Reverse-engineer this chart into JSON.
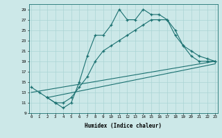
{
  "xlabel": "Humidex (Indice chaleur)",
  "xlim": [
    0,
    23
  ],
  "ylim": [
    9,
    30
  ],
  "yticks": [
    9,
    11,
    13,
    15,
    17,
    19,
    21,
    23,
    25,
    27,
    29
  ],
  "xticks": [
    0,
    1,
    2,
    3,
    4,
    5,
    6,
    7,
    8,
    9,
    10,
    11,
    12,
    13,
    14,
    15,
    16,
    17,
    18,
    19,
    20,
    21,
    22,
    23
  ],
  "bg_color": "#cce8e8",
  "grid_color": "#aad4d4",
  "line_color": "#1a7070",
  "line1_x": [
    0,
    1,
    2,
    3,
    4,
    5,
    6,
    7,
    8,
    9,
    10,
    11,
    12,
    13,
    14,
    15,
    16,
    17,
    18,
    19,
    20,
    21,
    22,
    23
  ],
  "line1_y": [
    14,
    13,
    12,
    11,
    10,
    11,
    15,
    20,
    24,
    24,
    26,
    29,
    27,
    27,
    29,
    28,
    28,
    27,
    24,
    22,
    20,
    19,
    19,
    19
  ],
  "line2_x": [
    2,
    3,
    4,
    5,
    6,
    7,
    8,
    9,
    10,
    11,
    12,
    13,
    14,
    15,
    16,
    17,
    18,
    19,
    20,
    21,
    22,
    23
  ],
  "line2_y": [
    12,
    11,
    11,
    12,
    14,
    16,
    19,
    21,
    22,
    23,
    24,
    25,
    26,
    27,
    27,
    27,
    25,
    22,
    21,
    20,
    19.5,
    19
  ],
  "line3_x": [
    0,
    23
  ],
  "line3_y": [
    13,
    19
  ],
  "line4_x": [
    2,
    23
  ],
  "line4_y": [
    12,
    18.5
  ]
}
